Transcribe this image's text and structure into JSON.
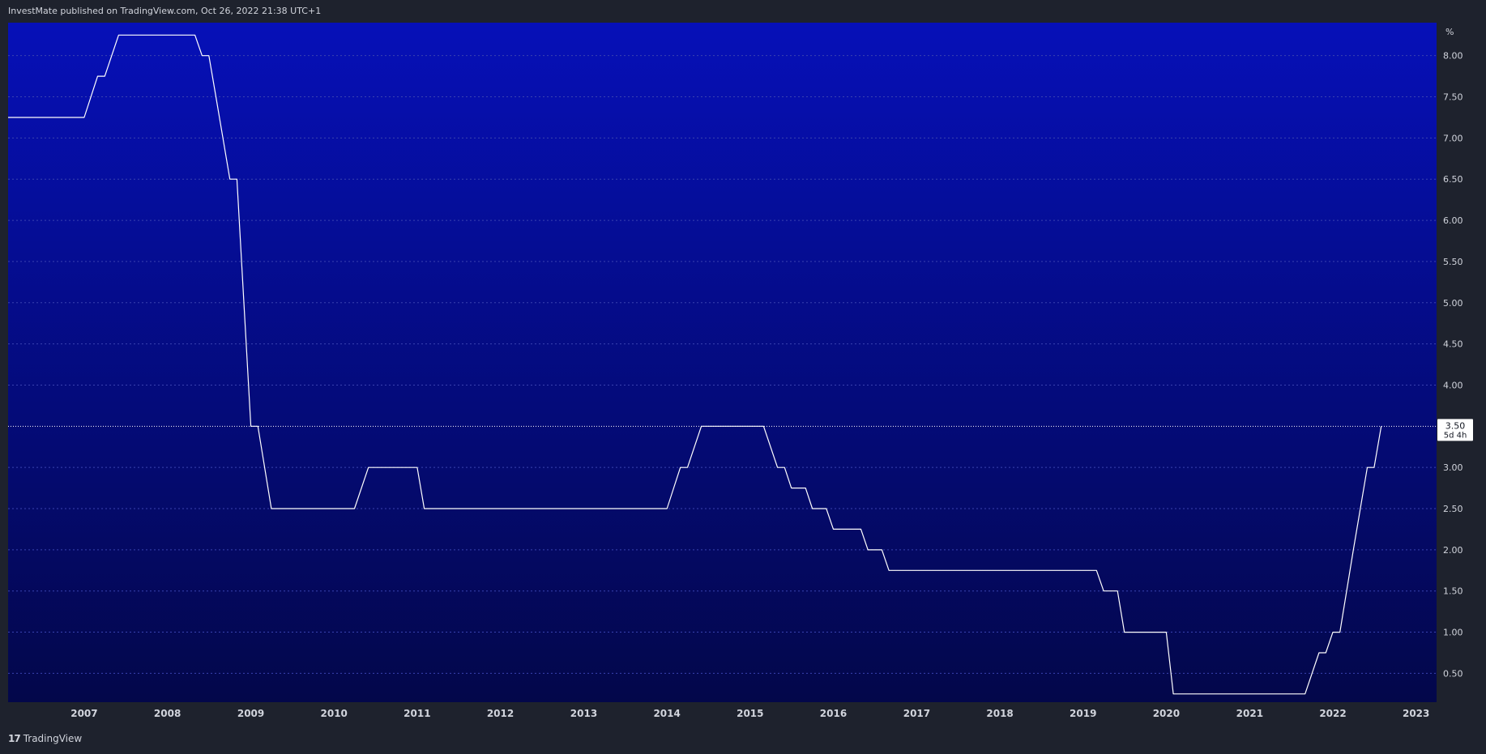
{
  "header": {
    "publisher_line": "InvestMate published on TradingView.com, Oct 26, 2022 21:38 UTC+1"
  },
  "footer": {
    "logo_glyph": "17",
    "brand": "TradingView"
  },
  "colors": {
    "page_bg": "#1e222d",
    "plot_top": "#0610b8",
    "plot_bottom": "#03074a",
    "line": "#ffffff",
    "grid": "#3a43b0",
    "axis_text": "#d1d4dc"
  },
  "chart_data": {
    "type": "line",
    "title": "",
    "xlabel": "",
    "ylabel": "",
    "y_unit_label": "%",
    "ylim": [
      0.15,
      8.4
    ],
    "xlim": [
      "2006-02-01",
      "2023-04-01"
    ],
    "grid": true,
    "yticks": [
      {
        "value": 0.5,
        "label": "0.50"
      },
      {
        "value": 1.0,
        "label": "1.00"
      },
      {
        "value": 1.5,
        "label": "1.50"
      },
      {
        "value": 2.0,
        "label": "2.00"
      },
      {
        "value": 2.5,
        "label": "2.50"
      },
      {
        "value": 3.0,
        "label": "3.00"
      },
      {
        "value": 4.0,
        "label": "4.00"
      },
      {
        "value": 4.5,
        "label": "4.50"
      },
      {
        "value": 5.0,
        "label": "5.00"
      },
      {
        "value": 5.5,
        "label": "5.50"
      },
      {
        "value": 6.0,
        "label": "6.00"
      },
      {
        "value": 6.5,
        "label": "6.50"
      },
      {
        "value": 7.0,
        "label": "7.00"
      },
      {
        "value": 7.5,
        "label": "7.50"
      },
      {
        "value": 8.0,
        "label": "8.00"
      }
    ],
    "xticks": [
      {
        "date": "2007-01-01",
        "label": "2007"
      },
      {
        "date": "2008-01-01",
        "label": "2008"
      },
      {
        "date": "2009-01-01",
        "label": "2009"
      },
      {
        "date": "2010-01-01",
        "label": "2010"
      },
      {
        "date": "2011-01-01",
        "label": "2011"
      },
      {
        "date": "2012-01-01",
        "label": "2012"
      },
      {
        "date": "2013-01-01",
        "label": "2013"
      },
      {
        "date": "2014-01-01",
        "label": "2014"
      },
      {
        "date": "2015-01-01",
        "label": "2015"
      },
      {
        "date": "2016-01-01",
        "label": "2016"
      },
      {
        "date": "2017-01-01",
        "label": "2017"
      },
      {
        "date": "2018-01-01",
        "label": "2018"
      },
      {
        "date": "2019-01-01",
        "label": "2019"
      },
      {
        "date": "2020-01-01",
        "label": "2020"
      },
      {
        "date": "2021-01-01",
        "label": "2021"
      },
      {
        "date": "2022-01-01",
        "label": "2022"
      },
      {
        "date": "2023-01-01",
        "label": "2023"
      }
    ],
    "last_value": {
      "value": 3.5,
      "label": "3.50",
      "countdown": "5d 4h"
    },
    "series": [
      {
        "points": [
          [
            "2006-02-01",
            7.25
          ],
          [
            "2007-01-01",
            7.25
          ],
          [
            "2007-03-01",
            7.75
          ],
          [
            "2007-04-01",
            7.75
          ],
          [
            "2007-06-01",
            8.25
          ],
          [
            "2008-05-01",
            8.25
          ],
          [
            "2008-06-01",
            8.0
          ],
          [
            "2008-07-01",
            8.0
          ],
          [
            "2008-08-01",
            7.5
          ],
          [
            "2008-10-01",
            6.5
          ],
          [
            "2008-11-01",
            6.5
          ],
          [
            "2009-01-01",
            3.5
          ],
          [
            "2009-02-01",
            3.5
          ],
          [
            "2009-04-01",
            2.5
          ],
          [
            "2010-04-01",
            2.5
          ],
          [
            "2010-06-01",
            3.0
          ],
          [
            "2011-01-01",
            3.0
          ],
          [
            "2011-02-01",
            2.5
          ],
          [
            "2014-01-01",
            2.5
          ],
          [
            "2014-03-01",
            3.0
          ],
          [
            "2014-04-01",
            3.0
          ],
          [
            "2014-06-01",
            3.5
          ],
          [
            "2015-03-01",
            3.5
          ],
          [
            "2015-05-01",
            3.0
          ],
          [
            "2015-06-01",
            3.0
          ],
          [
            "2015-07-01",
            2.75
          ],
          [
            "2015-09-01",
            2.75
          ],
          [
            "2015-10-01",
            2.5
          ],
          [
            "2015-12-01",
            2.5
          ],
          [
            "2016-01-01",
            2.25
          ],
          [
            "2016-05-01",
            2.25
          ],
          [
            "2016-06-01",
            2.0
          ],
          [
            "2016-08-01",
            2.0
          ],
          [
            "2016-09-01",
            1.75
          ],
          [
            "2019-03-01",
            1.75
          ],
          [
            "2019-04-01",
            1.5
          ],
          [
            "2019-06-01",
            1.5
          ],
          [
            "2019-07-01",
            1.0
          ],
          [
            "2020-01-01",
            1.0
          ],
          [
            "2020-02-01",
            0.25
          ],
          [
            "2021-09-01",
            0.25
          ],
          [
            "2021-11-01",
            0.75
          ],
          [
            "2021-12-01",
            0.75
          ],
          [
            "2022-01-01",
            1.0
          ],
          [
            "2022-02-01",
            1.0
          ],
          [
            "2022-04-01",
            2.0
          ],
          [
            "2022-06-01",
            3.0
          ],
          [
            "2022-07-01",
            3.0
          ],
          [
            "2022-08-01",
            3.5
          ]
        ]
      }
    ]
  }
}
